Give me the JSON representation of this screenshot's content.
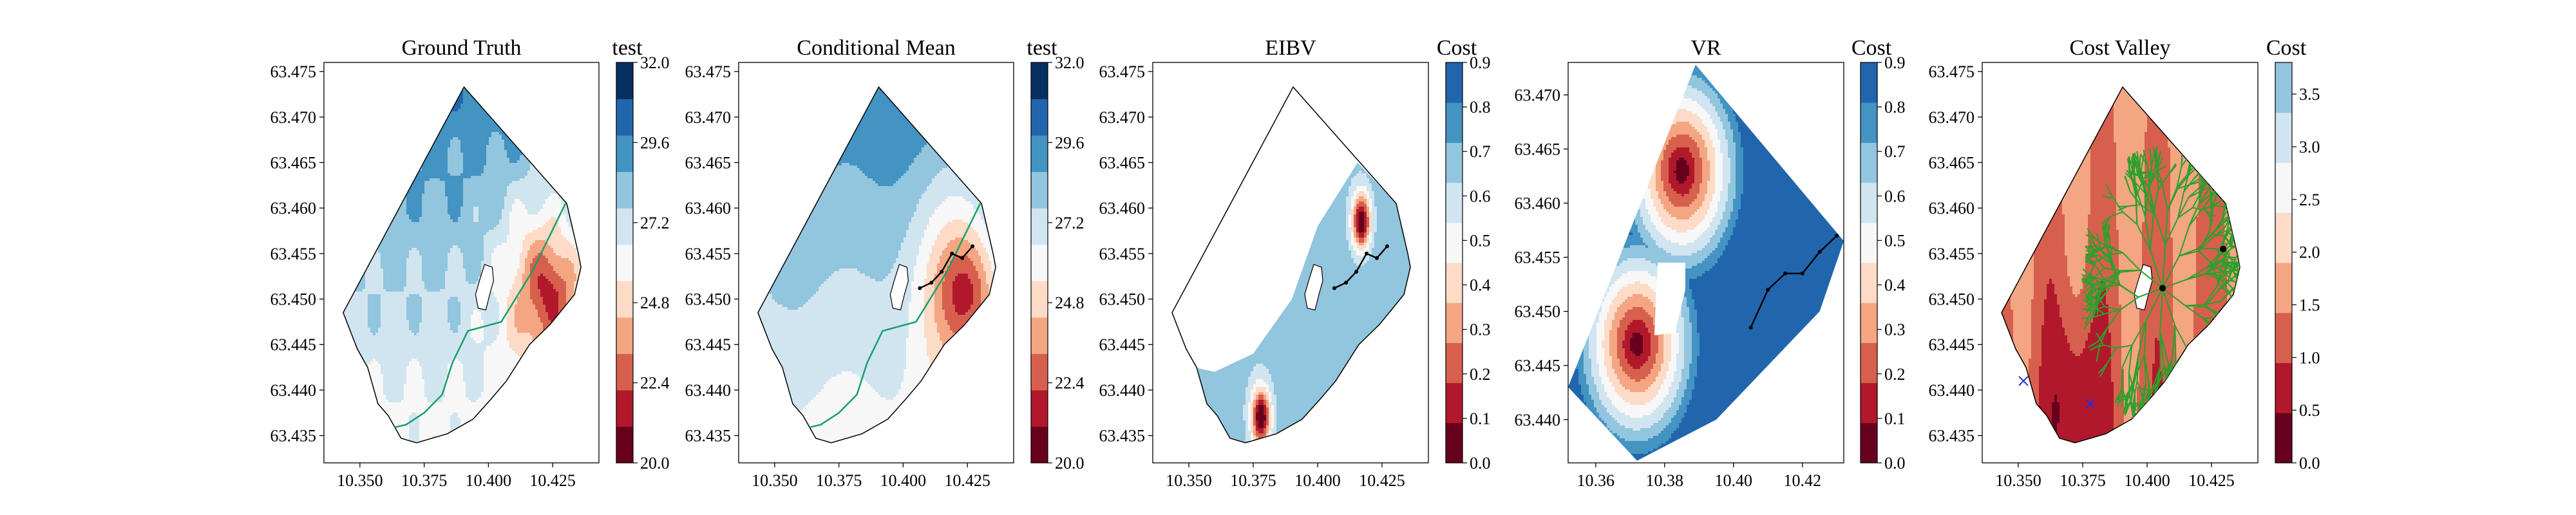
{
  "figure": {
    "panels": [
      {
        "title": "Ground Truth",
        "colorbar_label": "test"
      },
      {
        "title": "Conditional Mean",
        "colorbar_label": "test"
      },
      {
        "title": "EIBV",
        "colorbar_label": "Cost"
      },
      {
        "title": "VR",
        "colorbar_label": "Cost"
      },
      {
        "title": "Cost Valley",
        "colorbar_label": "Cost"
      }
    ]
  },
  "colors": {
    "map": [
      "#67001f",
      "#b2182b",
      "#d6604d",
      "#f4a582",
      "#fddbc7",
      "#f7f7f7",
      "#d1e5f0",
      "#92c5de",
      "#4393c3",
      "#2166ac",
      "#053061"
    ],
    "contour": "#1a9e6b",
    "tree": "#2ca02c",
    "path": "#000000",
    "marker": "#2b2bd9"
  },
  "chart_data": [
    {
      "type": "heatmap",
      "title": "Ground Truth",
      "colorbar_label": "test",
      "colorbar_range": [
        20.0,
        32.0
      ],
      "colorbar_ticks": [
        "20.0",
        "22.4",
        "24.8",
        "27.2",
        "29.6",
        "32.0"
      ],
      "x_ticks": [
        "10.350",
        "10.375",
        "10.400",
        "10.425"
      ],
      "y_ticks": [
        "63.435",
        "63.440",
        "63.445",
        "63.450",
        "63.455",
        "63.460",
        "63.465",
        "63.470",
        "63.475"
      ],
      "xlim": [
        10.336,
        10.443
      ],
      "ylim": [
        63.432,
        63.476
      ]
    },
    {
      "type": "heatmap",
      "title": "Conditional Mean",
      "colorbar_label": "test",
      "colorbar_range": [
        20.0,
        32.0
      ],
      "colorbar_ticks": [
        "20.0",
        "22.4",
        "24.8",
        "27.2",
        "29.6",
        "32.0"
      ],
      "x_ticks": [
        "10.350",
        "10.375",
        "10.400",
        "10.425"
      ],
      "y_ticks": [
        "63.435",
        "63.440",
        "63.445",
        "63.450",
        "63.455",
        "63.460",
        "63.465",
        "63.470",
        "63.475"
      ],
      "xlim": [
        10.336,
        10.443
      ],
      "ylim": [
        63.432,
        63.476
      ]
    },
    {
      "type": "heatmap",
      "title": "EIBV",
      "colorbar_label": "Cost",
      "colorbar_range": [
        0.0,
        0.9
      ],
      "colorbar_ticks": [
        "0.0",
        "0.1",
        "0.2",
        "0.3",
        "0.4",
        "0.5",
        "0.6",
        "0.7",
        "0.8",
        "0.9"
      ],
      "x_ticks": [
        "10.350",
        "10.375",
        "10.400",
        "10.425"
      ],
      "y_ticks": [
        "63.435",
        "63.440",
        "63.445",
        "63.450",
        "63.455",
        "63.460",
        "63.465",
        "63.470",
        "63.475"
      ],
      "xlim": [
        10.336,
        10.443
      ],
      "ylim": [
        63.432,
        63.476
      ]
    },
    {
      "type": "heatmap",
      "title": "VR",
      "colorbar_label": "Cost",
      "colorbar_range": [
        0.0,
        0.9
      ],
      "colorbar_ticks": [
        "0.0",
        "0.1",
        "0.2",
        "0.3",
        "0.4",
        "0.5",
        "0.6",
        "0.7",
        "0.8",
        "0.9"
      ],
      "x_ticks": [
        "10.36",
        "10.38",
        "10.40",
        "10.42"
      ],
      "y_ticks": [
        "63.440",
        "63.445",
        "63.450",
        "63.455",
        "63.460",
        "63.465",
        "63.470"
      ],
      "xlim": [
        10.352,
        10.432
      ],
      "ylim": [
        63.436,
        63.473
      ]
    },
    {
      "type": "heatmap",
      "title": "Cost Valley",
      "colorbar_label": "Cost",
      "colorbar_range": [
        0.0,
        3.8
      ],
      "colorbar_ticks": [
        "0.0",
        "0.5",
        "1.0",
        "1.5",
        "2.0",
        "2.5",
        "3.0",
        "3.5"
      ],
      "x_ticks": [
        "10.350",
        "10.375",
        "10.400",
        "10.425"
      ],
      "y_ticks": [
        "63.435",
        "63.440",
        "63.445",
        "63.450",
        "63.455",
        "63.460",
        "63.465",
        "63.470",
        "63.475"
      ],
      "xlim": [
        10.336,
        10.443
      ],
      "ylim": [
        63.432,
        63.476
      ]
    }
  ]
}
